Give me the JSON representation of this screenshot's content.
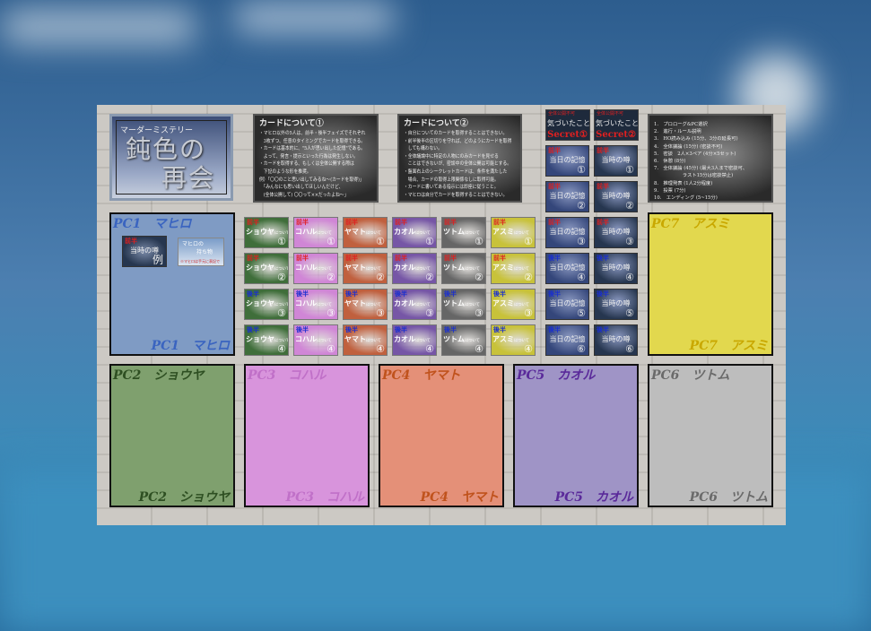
{
  "colors": {
    "first_half": "#e02020",
    "second_half": "#1a2fd0"
  },
  "title": {
    "subtitle": "マーダーミステリー",
    "main_line1": "鈍色の",
    "main_line2": "再会"
  },
  "rules1": {
    "heading": "カードについて①",
    "lines": [
      "・マヒロ以外の5人は、前半・後半フェイズでそれぞれ",
      "　3枚ずつ、任意のタイミングでカードを取得できる。",
      "・カードは基本的に、\"5人が思い出した記憶\"である。",
      "　よって、発言・提示といった行為は発生しない。",
      "・カードを取得する、もしくは全体公開する際は",
      "　下記のような形を推奨。",
      "例）「〇〇のこと思い出してみるね～(カードを取得)」",
      "　「みんなにも思い出してほしいんだけど、",
      "　(全体公開して) 〇〇って××だったよね～」"
    ]
  },
  "rules2": {
    "heading": "カードについて②",
    "lines": [
      "・自分についてのカードを取得することはできない。",
      "・前半後半の区切りを守れば、どのようにカードを取得",
      "　しても構わない。",
      "・全体議論中に特定の人物にのみカードを見せる",
      "　ことはできないが、密談中の全体公開は可能とする。",
      "・盤面右上のシークレットカードは、条件を満たした",
      "　場合、カードの取得上限関係なしに取得可能。",
      "・カードに書いてある指示には即座に従うこと。",
      "・マヒロは自分でカードを取得することはできない。"
    ]
  },
  "schedule": [
    "1.　プロローグ&PC選択",
    "2.　進行・ルール説明",
    "3.　HO読み込み (15分、3分の延長可)",
    "4.　全体議論 (15分) (密談不可)",
    "5.　密談　2人×3ペア (4分×5セット)",
    "6.　休憩 (8分)",
    "7.　全体議論 (45分) (最大3人まで密談可、",
    "　　　　　　ラスト15分は密談禁止)",
    "8.　推理発表 (1人2分程度)",
    "9.　投票 (7分)",
    "10.　エンディング (5~15分)"
  ],
  "secret_cards": [
    {
      "header": "全体公開不可",
      "title": "気づいたこと",
      "label": "Secret①"
    },
    {
      "header": "全体公開不可",
      "title": "気づいたこと",
      "label": "Secret②"
    }
  ],
  "memory_columns": [
    {
      "title": "当日の記憶",
      "color": "#34467a",
      "cards": [
        {
          "phase": "前半",
          "no": "①"
        },
        {
          "phase": "前半",
          "no": "②"
        },
        {
          "phase": "前半",
          "no": "③"
        },
        {
          "phase": "後半",
          "no": "④"
        },
        {
          "phase": "後半",
          "no": "⑤"
        },
        {
          "phase": "後半",
          "no": "⑥"
        }
      ]
    },
    {
      "title": "当時の噂",
      "color": "#26364f",
      "cards": [
        {
          "phase": "前半",
          "no": "①"
        },
        {
          "phase": "前半",
          "no": "②"
        },
        {
          "phase": "前半",
          "no": "③"
        },
        {
          "phase": "後半",
          "no": "④"
        },
        {
          "phase": "後半",
          "no": "⑤"
        },
        {
          "phase": "後半",
          "no": "⑥"
        }
      ]
    }
  ],
  "character_cards": {
    "suffix": "について",
    "rows": [
      {
        "phase": "前半",
        "no": "①"
      },
      {
        "phase": "前半",
        "no": "②"
      },
      {
        "phase": "後半",
        "no": "③"
      },
      {
        "phase": "後半",
        "no": "④"
      }
    ],
    "columns": [
      {
        "name": "ショウヤ",
        "color": "#3f6e3a"
      },
      {
        "name": "コハル",
        "color": "#d086d6"
      },
      {
        "name": "ヤマト",
        "color": "#c0603e"
      },
      {
        "name": "カオル",
        "color": "#7656a6"
      },
      {
        "name": "ツトム",
        "color": "#666666"
      },
      {
        "name": "アスミ",
        "color": "#c8c23a"
      }
    ]
  },
  "pc1_example": {
    "memory_card": {
      "phase": "前半",
      "title": "当時の噂",
      "tag": "例"
    },
    "item_card": {
      "line1": "マヒロの",
      "line2": "持ち物",
      "note": "※マヒロは手元に表記で"
    }
  },
  "players": [
    {
      "id": "pc1",
      "label": "PC1　マヒロ",
      "bg": "#7f9bc4",
      "fg": "#3a64c0"
    },
    {
      "id": "pc2",
      "label": "PC2　ショウヤ",
      "bg": "#7fa06e",
      "fg": "#2e4f22"
    },
    {
      "id": "pc3",
      "label": "PC3　コハル",
      "bg": "#d894dc",
      "fg": "#c070c8"
    },
    {
      "id": "pc4",
      "label": "PC4　ヤマト",
      "bg": "#e49078",
      "fg": "#c0521c"
    },
    {
      "id": "pc5",
      "label": "PC5　カオル",
      "bg": "#9f94c6",
      "fg": "#5a2a9a"
    },
    {
      "id": "pc6",
      "label": "PC6　ツトム",
      "bg": "#bdbdbd",
      "fg": "#6a6a6a"
    },
    {
      "id": "pc7",
      "label": "PC7　アスミ",
      "bg": "#e2d84e",
      "fg": "#c9a800"
    }
  ]
}
